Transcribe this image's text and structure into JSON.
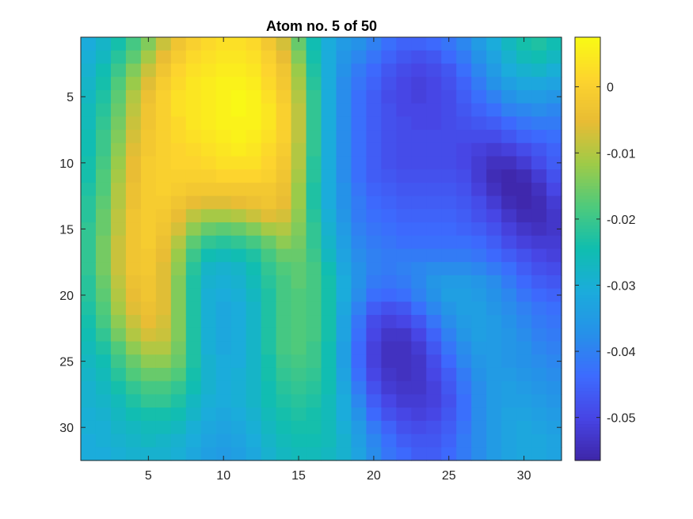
{
  "chart_data": {
    "type": "heatmap",
    "title": "Atom no. 5 of 50",
    "xlabel": "",
    "ylabel": "",
    "rows": 32,
    "cols": 32,
    "x_ticks": [
      5,
      10,
      15,
      20,
      25,
      30
    ],
    "x_tick_labels": [
      "5",
      "10",
      "15",
      "20",
      "25",
      "30"
    ],
    "y_ticks": [
      5,
      10,
      15,
      20,
      25,
      30
    ],
    "y_tick_labels": [
      "5",
      "10",
      "15",
      "20",
      "25",
      "30"
    ],
    "xlim": [
      0.5,
      32.5
    ],
    "ylim": [
      0.5,
      32.5
    ],
    "y_direction": "reverse",
    "colormap": "parula",
    "clim": [
      -0.0565,
      0.0075
    ],
    "colorbar": {
      "location": "right",
      "ticks": [
        0,
        -0.01,
        -0.02,
        -0.03,
        -0.04,
        -0.05
      ],
      "tick_labels": [
        "0",
        "-0.01",
        "-0.02",
        "-0.03",
        "-0.04",
        "-0.05"
      ]
    },
    "values": [
      [
        -0.031,
        -0.028,
        -0.024,
        -0.019,
        -0.014,
        -0.008,
        -0.003,
        0.0,
        0.002,
        0.003,
        0.003,
        0.002,
        -0.002,
        -0.007,
        -0.016,
        -0.025,
        -0.031,
        -0.035,
        -0.037,
        -0.04,
        -0.043,
        -0.045,
        -0.045,
        -0.044,
        -0.042,
        -0.039,
        -0.035,
        -0.031,
        -0.027,
        -0.024,
        -0.023,
        -0.025
      ],
      [
        -0.03,
        -0.027,
        -0.022,
        -0.017,
        -0.011,
        -0.005,
        -0.001,
        0.002,
        0.003,
        0.004,
        0.004,
        0.003,
        0.0,
        -0.005,
        -0.014,
        -0.024,
        -0.031,
        -0.036,
        -0.039,
        -0.042,
        -0.045,
        -0.047,
        -0.048,
        -0.047,
        -0.044,
        -0.041,
        -0.037,
        -0.033,
        -0.029,
        -0.026,
        -0.025,
        -0.027
      ],
      [
        -0.029,
        -0.025,
        -0.02,
        -0.014,
        -0.008,
        -0.003,
        0.001,
        0.003,
        0.004,
        0.005,
        0.005,
        0.004,
        0.001,
        -0.003,
        -0.012,
        -0.023,
        -0.031,
        -0.037,
        -0.041,
        -0.044,
        -0.047,
        -0.049,
        -0.05,
        -0.049,
        -0.047,
        -0.043,
        -0.039,
        -0.035,
        -0.031,
        -0.029,
        -0.028,
        -0.03
      ],
      [
        -0.028,
        -0.024,
        -0.018,
        -0.012,
        -0.006,
        -0.001,
        0.002,
        0.004,
        0.005,
        0.006,
        0.006,
        0.005,
        0.002,
        -0.002,
        -0.011,
        -0.022,
        -0.031,
        -0.038,
        -0.042,
        -0.045,
        -0.048,
        -0.05,
        -0.051,
        -0.05,
        -0.048,
        -0.045,
        -0.041,
        -0.037,
        -0.034,
        -0.032,
        -0.032,
        -0.033
      ],
      [
        -0.027,
        -0.023,
        -0.017,
        -0.01,
        -0.004,
        0.0,
        0.003,
        0.004,
        0.005,
        0.006,
        0.007,
        0.006,
        0.003,
        -0.001,
        -0.01,
        -0.021,
        -0.031,
        -0.038,
        -0.043,
        -0.046,
        -0.049,
        -0.05,
        -0.051,
        -0.05,
        -0.049,
        -0.046,
        -0.043,
        -0.04,
        -0.037,
        -0.035,
        -0.035,
        -0.036
      ],
      [
        -0.026,
        -0.022,
        -0.016,
        -0.009,
        -0.003,
        0.0,
        0.003,
        0.004,
        0.005,
        0.006,
        0.007,
        0.006,
        0.004,
        0.0,
        -0.009,
        -0.021,
        -0.031,
        -0.038,
        -0.043,
        -0.046,
        -0.048,
        -0.05,
        -0.05,
        -0.05,
        -0.049,
        -0.047,
        -0.045,
        -0.043,
        -0.04,
        -0.039,
        -0.038,
        -0.039
      ],
      [
        -0.026,
        -0.021,
        -0.015,
        -0.008,
        -0.003,
        0.0,
        0.002,
        0.004,
        0.005,
        0.006,
        0.006,
        0.006,
        0.004,
        0.0,
        -0.009,
        -0.021,
        -0.031,
        -0.038,
        -0.043,
        -0.046,
        -0.048,
        -0.049,
        -0.05,
        -0.05,
        -0.049,
        -0.048,
        -0.047,
        -0.046,
        -0.044,
        -0.042,
        -0.041,
        -0.041
      ],
      [
        -0.025,
        -0.02,
        -0.014,
        -0.007,
        -0.002,
        0.0,
        0.002,
        0.003,
        0.004,
        0.005,
        0.006,
        0.005,
        0.003,
        0.0,
        -0.009,
        -0.021,
        -0.031,
        -0.038,
        -0.043,
        -0.046,
        -0.048,
        -0.049,
        -0.049,
        -0.049,
        -0.049,
        -0.049,
        -0.049,
        -0.049,
        -0.047,
        -0.045,
        -0.044,
        -0.043
      ],
      [
        -0.025,
        -0.02,
        -0.013,
        -0.006,
        -0.002,
        0.0,
        0.001,
        0.002,
        0.003,
        0.004,
        0.005,
        0.004,
        0.002,
        -0.001,
        -0.01,
        -0.021,
        -0.031,
        -0.038,
        -0.043,
        -0.046,
        -0.048,
        -0.049,
        -0.049,
        -0.049,
        -0.049,
        -0.05,
        -0.051,
        -0.052,
        -0.051,
        -0.049,
        -0.047,
        -0.045
      ],
      [
        -0.024,
        -0.019,
        -0.012,
        -0.005,
        -0.001,
        0.0,
        0.001,
        0.001,
        0.002,
        0.003,
        0.003,
        0.003,
        0.001,
        -0.002,
        -0.01,
        -0.022,
        -0.031,
        -0.038,
        -0.043,
        -0.046,
        -0.048,
        -0.049,
        -0.049,
        -0.049,
        -0.049,
        -0.05,
        -0.052,
        -0.054,
        -0.054,
        -0.052,
        -0.049,
        -0.046
      ],
      [
        -0.024,
        -0.018,
        -0.011,
        -0.005,
        -0.001,
        0.0,
        0.0,
        0.0,
        0.0,
        0.001,
        0.001,
        0.001,
        0.0,
        -0.003,
        -0.011,
        -0.022,
        -0.031,
        -0.038,
        -0.043,
        -0.046,
        -0.047,
        -0.048,
        -0.048,
        -0.048,
        -0.048,
        -0.049,
        -0.052,
        -0.055,
        -0.056,
        -0.055,
        -0.052,
        -0.048
      ],
      [
        -0.023,
        -0.018,
        -0.01,
        -0.004,
        -0.001,
        0.0,
        -0.001,
        -0.002,
        -0.002,
        -0.002,
        -0.002,
        -0.002,
        -0.002,
        -0.004,
        -0.012,
        -0.023,
        -0.031,
        -0.037,
        -0.042,
        -0.045,
        -0.046,
        -0.047,
        -0.047,
        -0.047,
        -0.047,
        -0.048,
        -0.051,
        -0.054,
        -0.056,
        -0.056,
        -0.054,
        -0.05
      ],
      [
        -0.022,
        -0.017,
        -0.01,
        -0.004,
        -0.001,
        -0.001,
        -0.003,
        -0.005,
        -0.006,
        -0.006,
        -0.005,
        -0.004,
        -0.003,
        -0.005,
        -0.012,
        -0.023,
        -0.031,
        -0.037,
        -0.041,
        -0.044,
        -0.045,
        -0.046,
        -0.046,
        -0.046,
        -0.046,
        -0.047,
        -0.049,
        -0.052,
        -0.055,
        -0.056,
        -0.055,
        -0.052
      ],
      [
        -0.022,
        -0.016,
        -0.009,
        -0.003,
        -0.001,
        -0.002,
        -0.005,
        -0.009,
        -0.011,
        -0.011,
        -0.01,
        -0.008,
        -0.006,
        -0.007,
        -0.013,
        -0.022,
        -0.03,
        -0.036,
        -0.041,
        -0.043,
        -0.044,
        -0.045,
        -0.045,
        -0.045,
        -0.045,
        -0.046,
        -0.048,
        -0.05,
        -0.053,
        -0.055,
        -0.055,
        -0.053
      ],
      [
        -0.021,
        -0.016,
        -0.009,
        -0.003,
        -0.001,
        -0.003,
        -0.007,
        -0.013,
        -0.016,
        -0.017,
        -0.016,
        -0.014,
        -0.011,
        -0.01,
        -0.014,
        -0.021,
        -0.029,
        -0.035,
        -0.04,
        -0.042,
        -0.043,
        -0.044,
        -0.044,
        -0.044,
        -0.044,
        -0.045,
        -0.046,
        -0.048,
        -0.051,
        -0.053,
        -0.054,
        -0.053
      ],
      [
        -0.021,
        -0.015,
        -0.008,
        -0.003,
        -0.001,
        -0.004,
        -0.01,
        -0.017,
        -0.021,
        -0.022,
        -0.021,
        -0.019,
        -0.016,
        -0.013,
        -0.015,
        -0.021,
        -0.028,
        -0.034,
        -0.039,
        -0.041,
        -0.042,
        -0.043,
        -0.043,
        -0.043,
        -0.043,
        -0.043,
        -0.044,
        -0.046,
        -0.049,
        -0.051,
        -0.052,
        -0.052
      ],
      [
        -0.021,
        -0.015,
        -0.008,
        -0.003,
        -0.002,
        -0.005,
        -0.012,
        -0.02,
        -0.025,
        -0.026,
        -0.025,
        -0.023,
        -0.019,
        -0.016,
        -0.016,
        -0.02,
        -0.027,
        -0.033,
        -0.038,
        -0.04,
        -0.041,
        -0.041,
        -0.041,
        -0.041,
        -0.041,
        -0.041,
        -0.042,
        -0.044,
        -0.046,
        -0.048,
        -0.05,
        -0.051
      ],
      [
        -0.021,
        -0.015,
        -0.008,
        -0.003,
        -0.002,
        -0.006,
        -0.013,
        -0.022,
        -0.028,
        -0.029,
        -0.028,
        -0.025,
        -0.021,
        -0.018,
        -0.017,
        -0.019,
        -0.025,
        -0.032,
        -0.037,
        -0.04,
        -0.041,
        -0.04,
        -0.039,
        -0.038,
        -0.038,
        -0.038,
        -0.039,
        -0.041,
        -0.043,
        -0.046,
        -0.048,
        -0.049
      ],
      [
        -0.022,
        -0.016,
        -0.009,
        -0.004,
        -0.003,
        -0.006,
        -0.014,
        -0.023,
        -0.029,
        -0.03,
        -0.029,
        -0.026,
        -0.022,
        -0.019,
        -0.017,
        -0.019,
        -0.024,
        -0.031,
        -0.037,
        -0.041,
        -0.042,
        -0.041,
        -0.039,
        -0.036,
        -0.035,
        -0.035,
        -0.036,
        -0.038,
        -0.041,
        -0.044,
        -0.046,
        -0.047
      ],
      [
        -0.022,
        -0.017,
        -0.01,
        -0.005,
        -0.003,
        -0.006,
        -0.014,
        -0.023,
        -0.03,
        -0.031,
        -0.03,
        -0.027,
        -0.023,
        -0.019,
        -0.018,
        -0.019,
        -0.024,
        -0.031,
        -0.038,
        -0.043,
        -0.044,
        -0.043,
        -0.04,
        -0.037,
        -0.034,
        -0.034,
        -0.035,
        -0.037,
        -0.039,
        -0.042,
        -0.044,
        -0.045
      ],
      [
        -0.023,
        -0.018,
        -0.011,
        -0.006,
        -0.004,
        -0.006,
        -0.014,
        -0.023,
        -0.03,
        -0.032,
        -0.031,
        -0.028,
        -0.023,
        -0.019,
        -0.018,
        -0.019,
        -0.024,
        -0.032,
        -0.04,
        -0.046,
        -0.048,
        -0.047,
        -0.043,
        -0.039,
        -0.036,
        -0.034,
        -0.034,
        -0.036,
        -0.038,
        -0.04,
        -0.042,
        -0.043
      ],
      [
        -0.024,
        -0.019,
        -0.013,
        -0.008,
        -0.005,
        -0.007,
        -0.014,
        -0.023,
        -0.03,
        -0.032,
        -0.031,
        -0.028,
        -0.023,
        -0.019,
        -0.018,
        -0.019,
        -0.024,
        -0.033,
        -0.042,
        -0.049,
        -0.051,
        -0.05,
        -0.047,
        -0.042,
        -0.038,
        -0.035,
        -0.034,
        -0.035,
        -0.037,
        -0.039,
        -0.041,
        -0.042
      ],
      [
        -0.025,
        -0.021,
        -0.015,
        -0.01,
        -0.007,
        -0.008,
        -0.014,
        -0.023,
        -0.03,
        -0.032,
        -0.031,
        -0.028,
        -0.023,
        -0.019,
        -0.018,
        -0.019,
        -0.024,
        -0.033,
        -0.043,
        -0.05,
        -0.053,
        -0.053,
        -0.05,
        -0.045,
        -0.04,
        -0.036,
        -0.034,
        -0.035,
        -0.036,
        -0.038,
        -0.04,
        -0.041
      ],
      [
        -0.026,
        -0.023,
        -0.018,
        -0.013,
        -0.01,
        -0.01,
        -0.015,
        -0.023,
        -0.03,
        -0.032,
        -0.031,
        -0.028,
        -0.023,
        -0.019,
        -0.018,
        -0.02,
        -0.025,
        -0.034,
        -0.044,
        -0.051,
        -0.054,
        -0.054,
        -0.052,
        -0.047,
        -0.042,
        -0.038,
        -0.035,
        -0.035,
        -0.036,
        -0.037,
        -0.039,
        -0.04
      ],
      [
        -0.027,
        -0.025,
        -0.02,
        -0.016,
        -0.013,
        -0.013,
        -0.016,
        -0.023,
        -0.029,
        -0.031,
        -0.031,
        -0.028,
        -0.024,
        -0.02,
        -0.019,
        -0.02,
        -0.025,
        -0.034,
        -0.044,
        -0.051,
        -0.054,
        -0.054,
        -0.053,
        -0.049,
        -0.044,
        -0.039,
        -0.036,
        -0.035,
        -0.036,
        -0.037,
        -0.038,
        -0.039
      ],
      [
        -0.028,
        -0.026,
        -0.022,
        -0.018,
        -0.016,
        -0.016,
        -0.018,
        -0.024,
        -0.029,
        -0.031,
        -0.03,
        -0.028,
        -0.024,
        -0.021,
        -0.02,
        -0.021,
        -0.025,
        -0.033,
        -0.043,
        -0.05,
        -0.053,
        -0.054,
        -0.053,
        -0.05,
        -0.046,
        -0.041,
        -0.037,
        -0.035,
        -0.035,
        -0.036,
        -0.037,
        -0.038
      ],
      [
        -0.029,
        -0.027,
        -0.024,
        -0.021,
        -0.019,
        -0.019,
        -0.021,
        -0.025,
        -0.029,
        -0.031,
        -0.03,
        -0.028,
        -0.025,
        -0.022,
        -0.021,
        -0.022,
        -0.025,
        -0.032,
        -0.041,
        -0.048,
        -0.052,
        -0.053,
        -0.053,
        -0.051,
        -0.047,
        -0.042,
        -0.038,
        -0.035,
        -0.034,
        -0.035,
        -0.036,
        -0.037
      ],
      [
        -0.029,
        -0.028,
        -0.026,
        -0.023,
        -0.021,
        -0.021,
        -0.023,
        -0.027,
        -0.03,
        -0.031,
        -0.03,
        -0.028,
        -0.025,
        -0.023,
        -0.022,
        -0.023,
        -0.026,
        -0.031,
        -0.039,
        -0.046,
        -0.05,
        -0.052,
        -0.052,
        -0.051,
        -0.048,
        -0.043,
        -0.038,
        -0.035,
        -0.034,
        -0.034,
        -0.035,
        -0.036
      ],
      [
        -0.03,
        -0.029,
        -0.027,
        -0.025,
        -0.024,
        -0.024,
        -0.025,
        -0.028,
        -0.031,
        -0.032,
        -0.031,
        -0.029,
        -0.026,
        -0.024,
        -0.023,
        -0.024,
        -0.026,
        -0.031,
        -0.037,
        -0.044,
        -0.048,
        -0.05,
        -0.051,
        -0.05,
        -0.047,
        -0.043,
        -0.038,
        -0.035,
        -0.033,
        -0.033,
        -0.034,
        -0.035
      ],
      [
        -0.03,
        -0.03,
        -0.028,
        -0.027,
        -0.026,
        -0.026,
        -0.027,
        -0.03,
        -0.032,
        -0.033,
        -0.032,
        -0.03,
        -0.027,
        -0.025,
        -0.024,
        -0.024,
        -0.026,
        -0.03,
        -0.035,
        -0.041,
        -0.045,
        -0.048,
        -0.049,
        -0.048,
        -0.046,
        -0.042,
        -0.038,
        -0.035,
        -0.033,
        -0.032,
        -0.033,
        -0.034
      ],
      [
        -0.031,
        -0.03,
        -0.029,
        -0.028,
        -0.027,
        -0.028,
        -0.029,
        -0.031,
        -0.033,
        -0.034,
        -0.033,
        -0.031,
        -0.028,
        -0.026,
        -0.025,
        -0.025,
        -0.026,
        -0.029,
        -0.034,
        -0.039,
        -0.043,
        -0.046,
        -0.047,
        -0.047,
        -0.045,
        -0.041,
        -0.038,
        -0.035,
        -0.033,
        -0.032,
        -0.032,
        -0.033
      ],
      [
        -0.031,
        -0.031,
        -0.03,
        -0.029,
        -0.029,
        -0.029,
        -0.03,
        -0.032,
        -0.034,
        -0.035,
        -0.034,
        -0.032,
        -0.029,
        -0.027,
        -0.026,
        -0.026,
        -0.027,
        -0.029,
        -0.033,
        -0.038,
        -0.042,
        -0.044,
        -0.046,
        -0.046,
        -0.044,
        -0.041,
        -0.038,
        -0.035,
        -0.033,
        -0.032,
        -0.032,
        -0.033
      ]
    ]
  }
}
